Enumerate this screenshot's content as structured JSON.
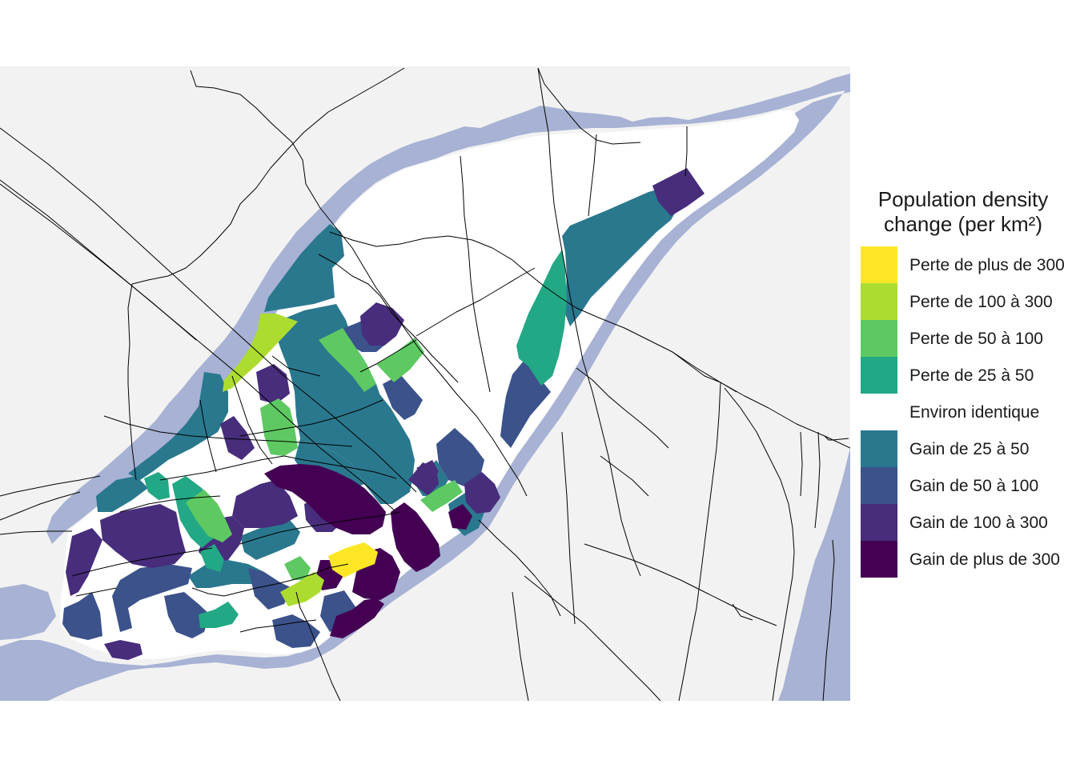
{
  "legend": {
    "title": "Population density\nchange (per km²)",
    "items": [
      {
        "label": "Perte de plus de 300",
        "color": "#fde725"
      },
      {
        "label": "Perte de 100 à 300",
        "color": "#addc30"
      },
      {
        "label": "Perte de 50 à 100",
        "color": "#5ec962"
      },
      {
        "label": "Perte de 25 à 50",
        "color": "#22a884"
      },
      {
        "label": "Environ identique",
        "color": "#ffffff"
      },
      {
        "label": "Gain de 25 à 50",
        "color": "#2a788e"
      },
      {
        "label": "Gain de 50 à 100",
        "color": "#3b528b"
      },
      {
        "label": "Gain de 100 à 300",
        "color": "#472d7b"
      },
      {
        "label": "Gain de plus de 300",
        "color": "#440154"
      }
    ]
  },
  "colors": {
    "land": "#f2f2f2",
    "water": "#a7b2d4",
    "roads": "#000000"
  }
}
